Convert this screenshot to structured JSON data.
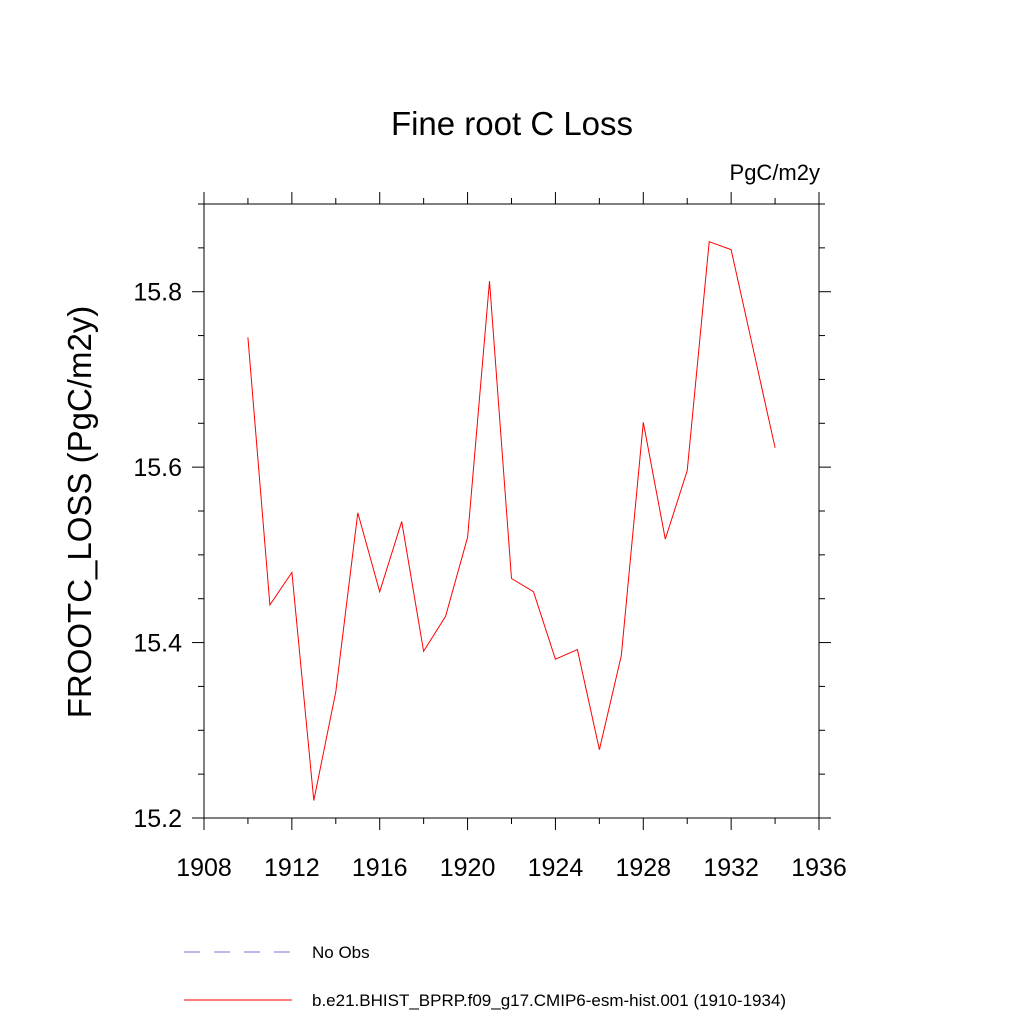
{
  "chart_data": {
    "type": "line",
    "title": "Fine root C Loss",
    "units_label": "PgC/m2y",
    "xlabel": "",
    "ylabel": "FROOTC_LOSS  (PgC/m2y)",
    "xlim": [
      1908,
      1936
    ],
    "ylim": [
      15.2,
      15.9
    ],
    "xticks": [
      1908,
      1912,
      1916,
      1920,
      1924,
      1928,
      1932,
      1936
    ],
    "xtick_labels": [
      "1908",
      "1912",
      "1916",
      "1920",
      "1924",
      "1928",
      "1932",
      "1936"
    ],
    "yticks": [
      15.2,
      15.4,
      15.6,
      15.8
    ],
    "ytick_labels": [
      "15.2",
      "15.4",
      "15.6",
      "15.8"
    ],
    "y_minor_step": 0.05,
    "x_minor_step": 2,
    "grid": false,
    "legend_position": "bottom",
    "series": [
      {
        "name": "b.e21.BHIST_BPRP.f09_g17.CMIP6-esm-hist.001 (1910-1934)",
        "color": "#ff0000",
        "dash": "solid",
        "x": [
          1910,
          1911,
          1912,
          1913,
          1914,
          1915,
          1916,
          1917,
          1918,
          1919,
          1920,
          1921,
          1922,
          1923,
          1924,
          1925,
          1926,
          1927,
          1928,
          1929,
          1930,
          1931,
          1932,
          1933,
          1934
        ],
        "y": [
          15.748,
          15.443,
          15.48,
          15.22,
          15.344,
          15.548,
          15.458,
          15.538,
          15.39,
          15.43,
          15.52,
          15.812,
          15.473,
          15.458,
          15.381,
          15.392,
          15.278,
          15.385,
          15.651,
          15.518,
          15.596,
          15.857,
          15.848,
          15.735,
          15.622
        ]
      }
    ],
    "legend": [
      {
        "label": "No Obs",
        "color": "#7b6fd6",
        "dash": "dashed"
      },
      {
        "label": "b.e21.BHIST_BPRP.f09_g17.CMIP6-esm-hist.001 (1910-1934)",
        "color": "#ff0000",
        "dash": "solid"
      }
    ]
  }
}
